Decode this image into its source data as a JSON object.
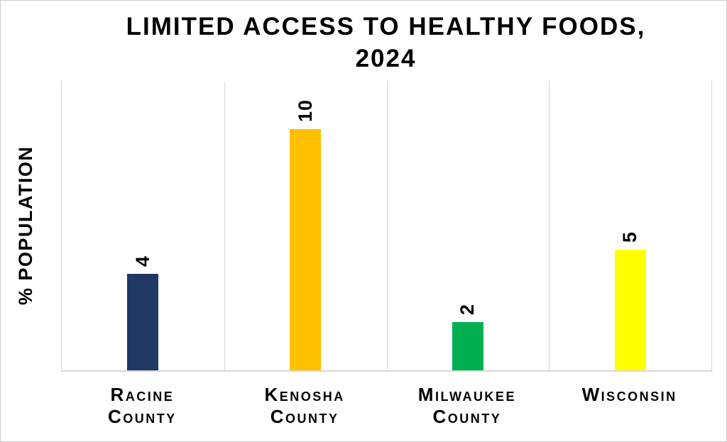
{
  "chart_data": {
    "type": "bar",
    "title": "LIMITED ACCESS TO HEALTHY FOODS, 2024",
    "title_lines": [
      "LIMITED ACCESS TO HEALTHY FOODS,",
      "2024"
    ],
    "ylabel": "% POPULATION",
    "xlabel": "",
    "categories": [
      "Racine County",
      "Kenosha County",
      "Milwaukee County",
      "Wisconsin"
    ],
    "category_label_lines": [
      [
        "Racine",
        "County"
      ],
      [
        "Kenosha",
        "County"
      ],
      [
        "Milwaukee",
        "County"
      ],
      [
        "Wisconsin"
      ]
    ],
    "values": [
      4,
      10,
      2,
      5
    ],
    "data_labels": [
      "4",
      "10",
      "2",
      "5"
    ],
    "data_label_rotation_deg": -90,
    "bar_colors": [
      "#1F3864",
      "#FFC000",
      "#00B050",
      "#FFFF00"
    ],
    "ylim": [
      0,
      12
    ],
    "y_tick_labels": "none",
    "legend_position": "none",
    "grid": {
      "horizontal": false,
      "vertical_category_separators": true,
      "line_color": "#D9D9D9"
    },
    "text_color": "#000000",
    "background_color": "#FFFFFF"
  }
}
